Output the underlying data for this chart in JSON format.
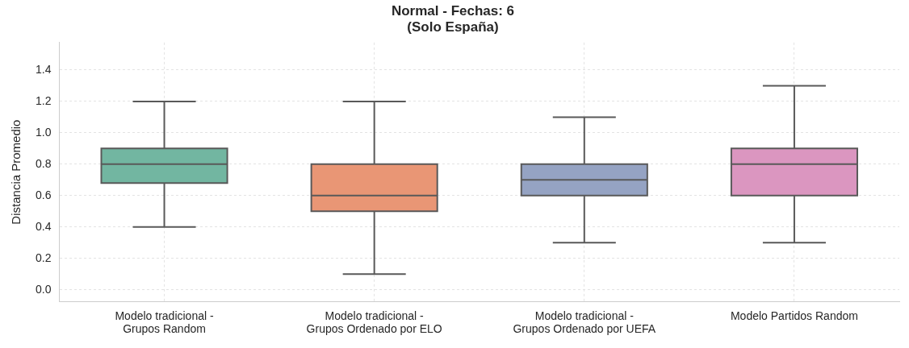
{
  "chart_data": {
    "type": "box",
    "title": "Normal - Fechas: 6\n(Solo España)",
    "ylabel": "Distancia Promedio",
    "categories": [
      "Modelo tradicional -\nGrupos Random",
      "Modelo tradicional -\nGrupos Ordenado por ELO",
      "Modelo tradicional -\nGrupos Ordenado por UEFA",
      "Modelo Partidos Random"
    ],
    "boxes": [
      {
        "low": 0.4,
        "q1": 0.68,
        "median": 0.8,
        "q3": 0.9,
        "high": 1.2
      },
      {
        "low": 0.1,
        "q1": 0.5,
        "median": 0.6,
        "q3": 0.8,
        "high": 1.2
      },
      {
        "low": 0.3,
        "q1": 0.6,
        "median": 0.7,
        "q3": 0.8,
        "high": 1.1
      },
      {
        "low": 0.3,
        "q1": 0.6,
        "median": 0.8,
        "q3": 0.9,
        "high": 1.3
      }
    ],
    "colors": [
      "#72b6a1",
      "#e99675",
      "#95a3c3",
      "#db96c0"
    ],
    "ylim": [
      -0.075,
      1.575
    ],
    "yticks": [
      {
        "value": 0,
        "label": "0.0"
      },
      0.2,
      0.4,
      0.6,
      0.8,
      {
        "value": 1,
        "label": "1.0"
      },
      1.2,
      1.4
    ],
    "grid": true
  }
}
